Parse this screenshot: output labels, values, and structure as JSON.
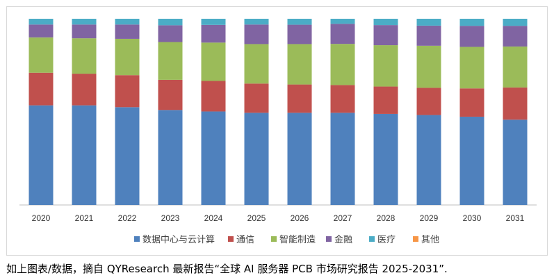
{
  "chart_data": {
    "type": "bar",
    "stacked": "percent",
    "title": "",
    "xlabel": "",
    "ylabel": "",
    "ylim": [
      0,
      100
    ],
    "grid": false,
    "legend_position": "bottom",
    "categories": [
      "2020",
      "2021",
      "2022",
      "2023",
      "2024",
      "2025",
      "2026",
      "2027",
      "2028",
      "2029",
      "2030",
      "2031"
    ],
    "series": [
      {
        "name": "数据中心与云计算",
        "color": "#4f81bd",
        "values": [
          53.5,
          53.5,
          52.5,
          51,
          50.2,
          49.5,
          49.5,
          49.5,
          48.9,
          48.3,
          47.4,
          45.8
        ]
      },
      {
        "name": "通信",
        "color": "#c0504d",
        "values": [
          17.5,
          17,
          17.2,
          16.2,
          16.4,
          15.7,
          15.2,
          14.9,
          14.7,
          14.6,
          15.2,
          17.3
        ]
      },
      {
        "name": "智能制造",
        "color": "#9bbb59",
        "values": [
          19,
          19,
          19.5,
          20.3,
          20.6,
          21.2,
          21.7,
          22.1,
          22.2,
          22.6,
          22.3,
          22
        ]
      },
      {
        "name": "金融",
        "color": "#8064a2",
        "values": [
          6.9,
          7.4,
          7.7,
          9,
          9.5,
          10.5,
          10.4,
          10.8,
          10.8,
          10.8,
          11.3,
          11.1
        ]
      },
      {
        "name": "医疗",
        "color": "#4bacc6",
        "values": [
          3.1,
          3.1,
          3.1,
          3.5,
          3.3,
          3.1,
          3.2,
          2.7,
          3.4,
          3.7,
          3.8,
          3.8
        ]
      },
      {
        "name": "其他",
        "color": "#f79646",
        "values": [
          0,
          0,
          0,
          0,
          0,
          0,
          0,
          0,
          0,
          0,
          0,
          0
        ]
      }
    ]
  },
  "caption": "如上图表/数据，摘自 QYResearch 最新报告“全球 AI 服务器 PCB 市场研究报告 2025-2031”."
}
